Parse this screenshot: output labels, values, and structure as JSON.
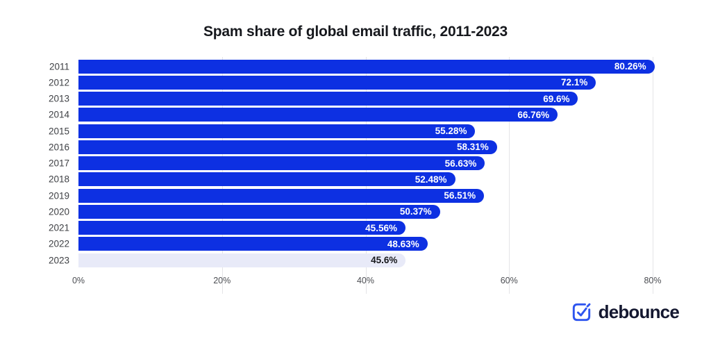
{
  "title": "Spam share of global email traffic, 2011-2023",
  "chart_data": {
    "type": "bar",
    "orientation": "horizontal",
    "title": "Spam share of global email traffic, 2011-2023",
    "categories": [
      "2011",
      "2012",
      "2013",
      "2014",
      "2015",
      "2016",
      "2017",
      "2018",
      "2019",
      "2020",
      "2021",
      "2022",
      "2023"
    ],
    "values": [
      80.26,
      72.1,
      69.6,
      66.76,
      55.28,
      58.31,
      56.63,
      52.48,
      56.51,
      50.37,
      45.56,
      48.63,
      45.6
    ],
    "data_labels": [
      "80.26%",
      "72.1%",
      "69.6%",
      "66.76%",
      "55.28%",
      "58.31%",
      "56.63%",
      "52.48%",
      "56.51%",
      "50.37%",
      "45.56%",
      "48.63%",
      "45.6%"
    ],
    "xlabel": "",
    "ylabel": "",
    "x_ticks": [
      "0%",
      "20%",
      "40%",
      "60%",
      "80%"
    ],
    "x_tick_values": [
      0,
      20,
      40,
      60,
      80
    ],
    "xlim": [
      0,
      80
    ],
    "grid": "vertical-on",
    "legend": "none",
    "bar_color": "#0d30e2",
    "highlight_last_bar_color": "#e8eaf8",
    "value_label_color": "#ffffff",
    "highlight_value_label_color": "#17181c"
  },
  "footer": {
    "brand": "debounce",
    "logo_icon": "checkmark-box-icon",
    "logo_icon_color": "#2e55ef",
    "brand_text_color": "#141830"
  }
}
